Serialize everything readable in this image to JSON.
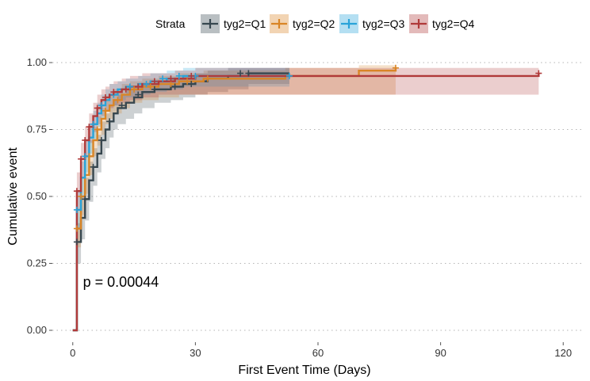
{
  "chart_data": {
    "type": "line",
    "title": "",
    "xlabel": "First Event Time  (Days)",
    "ylabel": "Cumulative event",
    "xlim": [
      -5,
      125
    ],
    "ylim": [
      0,
      1.0
    ],
    "x_ticks": [
      0,
      30,
      60,
      90,
      120
    ],
    "y_ticks": [
      "0.00",
      "0.25",
      "0.50",
      "0.75",
      "1.00"
    ],
    "y_tick_values": [
      0,
      0.25,
      0.5,
      0.75,
      1.0
    ],
    "grid": "horizontal dotted",
    "legend": {
      "title": "Strata",
      "position": "top"
    },
    "annotation": "p = 0.00044",
    "annotation_at": {
      "x": 2.5,
      "y": 0.18
    },
    "series": [
      {
        "name": "tyg2=Q1",
        "color": "#37474F",
        "steps": [
          [
            0,
            0
          ],
          [
            1,
            0.33
          ],
          [
            2,
            0.42
          ],
          [
            3,
            0.49
          ],
          [
            4,
            0.56
          ],
          [
            5,
            0.61
          ],
          [
            6,
            0.66
          ],
          [
            7,
            0.71
          ],
          [
            8,
            0.75
          ],
          [
            9,
            0.78
          ],
          [
            10,
            0.81
          ],
          [
            11,
            0.83
          ],
          [
            13,
            0.85
          ],
          [
            15,
            0.87
          ],
          [
            17,
            0.89
          ],
          [
            20,
            0.9
          ],
          [
            24,
            0.91
          ],
          [
            27,
            0.92
          ],
          [
            30,
            0.93
          ],
          [
            33,
            0.94
          ],
          [
            38,
            0.95
          ],
          [
            43,
            0.96
          ],
          [
            53,
            0.96
          ]
        ],
        "ci_upper": [
          [
            1,
            0.4
          ],
          [
            2,
            0.5
          ],
          [
            3,
            0.57
          ],
          [
            4,
            0.63
          ],
          [
            5,
            0.68
          ],
          [
            6,
            0.73
          ],
          [
            7,
            0.78
          ],
          [
            8,
            0.81
          ],
          [
            9,
            0.84
          ],
          [
            10,
            0.86
          ],
          [
            11,
            0.88
          ],
          [
            13,
            0.9
          ],
          [
            15,
            0.91
          ],
          [
            17,
            0.92
          ],
          [
            20,
            0.93
          ],
          [
            24,
            0.94
          ],
          [
            27,
            0.95
          ],
          [
            30,
            0.96
          ],
          [
            33,
            0.97
          ],
          [
            38,
            0.98
          ],
          [
            43,
            0.98
          ],
          [
            53,
            0.98
          ]
        ],
        "ci_lower": [
          [
            1,
            0.25
          ],
          [
            2,
            0.34
          ],
          [
            3,
            0.41
          ],
          [
            4,
            0.48
          ],
          [
            5,
            0.54
          ],
          [
            6,
            0.59
          ],
          [
            7,
            0.64
          ],
          [
            8,
            0.68
          ],
          [
            9,
            0.72
          ],
          [
            10,
            0.75
          ],
          [
            11,
            0.77
          ],
          [
            13,
            0.79
          ],
          [
            15,
            0.81
          ],
          [
            17,
            0.83
          ],
          [
            20,
            0.85
          ],
          [
            24,
            0.86
          ],
          [
            27,
            0.87
          ],
          [
            30,
            0.88
          ],
          [
            33,
            0.89
          ],
          [
            38,
            0.9
          ],
          [
            43,
            0.92
          ],
          [
            53,
            0.92
          ]
        ],
        "censor": [
          [
            1,
            0.33
          ],
          [
            3,
            0.49
          ],
          [
            5,
            0.61
          ],
          [
            7,
            0.71
          ],
          [
            9,
            0.78
          ],
          [
            12,
            0.84
          ],
          [
            16,
            0.88
          ],
          [
            20,
            0.9
          ],
          [
            25,
            0.91
          ],
          [
            29,
            0.92
          ],
          [
            41,
            0.96
          ],
          [
            43,
            0.96
          ]
        ]
      },
      {
        "name": "tyg2=Q2",
        "color": "#D98526",
        "steps": [
          [
            0,
            0
          ],
          [
            1,
            0.38
          ],
          [
            2,
            0.5
          ],
          [
            3,
            0.58
          ],
          [
            4,
            0.65
          ],
          [
            5,
            0.71
          ],
          [
            6,
            0.75
          ],
          [
            7,
            0.79
          ],
          [
            8,
            0.82
          ],
          [
            9,
            0.84
          ],
          [
            10,
            0.86
          ],
          [
            12,
            0.88
          ],
          [
            14,
            0.9
          ],
          [
            17,
            0.91
          ],
          [
            21,
            0.92
          ],
          [
            26,
            0.93
          ],
          [
            32,
            0.94
          ],
          [
            52,
            0.95
          ],
          [
            70,
            0.97
          ],
          [
            79,
            0.98
          ]
        ],
        "ci_upper": [
          [
            1,
            0.45
          ],
          [
            2,
            0.57
          ],
          [
            3,
            0.65
          ],
          [
            4,
            0.71
          ],
          [
            5,
            0.76
          ],
          [
            6,
            0.8
          ],
          [
            7,
            0.83
          ],
          [
            8,
            0.86
          ],
          [
            9,
            0.88
          ],
          [
            10,
            0.9
          ],
          [
            12,
            0.92
          ],
          [
            14,
            0.93
          ],
          [
            17,
            0.94
          ],
          [
            21,
            0.95
          ],
          [
            26,
            0.96
          ],
          [
            32,
            0.97
          ],
          [
            52,
            0.98
          ],
          [
            70,
            0.99
          ],
          [
            79,
            0.99
          ]
        ],
        "ci_lower": [
          [
            1,
            0.31
          ],
          [
            2,
            0.43
          ],
          [
            3,
            0.51
          ],
          [
            4,
            0.58
          ],
          [
            5,
            0.65
          ],
          [
            6,
            0.69
          ],
          [
            7,
            0.73
          ],
          [
            8,
            0.77
          ],
          [
            9,
            0.79
          ],
          [
            10,
            0.81
          ],
          [
            12,
            0.83
          ],
          [
            14,
            0.85
          ],
          [
            17,
            0.86
          ],
          [
            21,
            0.87
          ],
          [
            26,
            0.88
          ],
          [
            32,
            0.88
          ],
          [
            52,
            0.88
          ],
          [
            70,
            0.88
          ],
          [
            79,
            0.88
          ]
        ],
        "censor": [
          [
            1,
            0.38
          ],
          [
            2,
            0.5
          ],
          [
            4,
            0.65
          ],
          [
            6,
            0.75
          ],
          [
            8,
            0.82
          ],
          [
            11,
            0.86
          ],
          [
            15,
            0.9
          ],
          [
            19,
            0.91
          ],
          [
            24,
            0.92
          ],
          [
            28,
            0.93
          ],
          [
            33,
            0.94
          ],
          [
            79,
            0.98
          ]
        ]
      },
      {
        "name": "tyg2=Q3",
        "color": "#29A3D9",
        "steps": [
          [
            0,
            0
          ],
          [
            1,
            0.45
          ],
          [
            2,
            0.57
          ],
          [
            3,
            0.65
          ],
          [
            4,
            0.72
          ],
          [
            5,
            0.77
          ],
          [
            6,
            0.81
          ],
          [
            7,
            0.84
          ],
          [
            8,
            0.86
          ],
          [
            9,
            0.88
          ],
          [
            11,
            0.9
          ],
          [
            13,
            0.91
          ],
          [
            16,
            0.92
          ],
          [
            19,
            0.93
          ],
          [
            23,
            0.94
          ],
          [
            27,
            0.95
          ],
          [
            53,
            0.95
          ]
        ],
        "ci_upper": [
          [
            1,
            0.52
          ],
          [
            2,
            0.63
          ],
          [
            3,
            0.71
          ],
          [
            4,
            0.77
          ],
          [
            5,
            0.82
          ],
          [
            6,
            0.85
          ],
          [
            7,
            0.88
          ],
          [
            8,
            0.9
          ],
          [
            9,
            0.92
          ],
          [
            11,
            0.93
          ],
          [
            13,
            0.94
          ],
          [
            16,
            0.95
          ],
          [
            19,
            0.96
          ],
          [
            23,
            0.97
          ],
          [
            27,
            0.98
          ],
          [
            53,
            0.98
          ]
        ],
        "ci_lower": [
          [
            1,
            0.38
          ],
          [
            2,
            0.5
          ],
          [
            3,
            0.59
          ],
          [
            4,
            0.66
          ],
          [
            5,
            0.71
          ],
          [
            6,
            0.76
          ],
          [
            7,
            0.79
          ],
          [
            8,
            0.82
          ],
          [
            9,
            0.84
          ],
          [
            11,
            0.86
          ],
          [
            13,
            0.87
          ],
          [
            16,
            0.88
          ],
          [
            19,
            0.89
          ],
          [
            23,
            0.9
          ],
          [
            27,
            0.91
          ],
          [
            53,
            0.91
          ]
        ],
        "censor": [
          [
            1,
            0.45
          ],
          [
            3,
            0.65
          ],
          [
            5,
            0.77
          ],
          [
            7,
            0.84
          ],
          [
            10,
            0.88
          ],
          [
            14,
            0.91
          ],
          [
            18,
            0.92
          ],
          [
            22,
            0.94
          ],
          [
            26,
            0.95
          ],
          [
            30,
            0.95
          ],
          [
            53,
            0.95
          ]
        ]
      },
      {
        "name": "tyg2=Q4",
        "color": "#B03A3A",
        "steps": [
          [
            0,
            0
          ],
          [
            1,
            0.52
          ],
          [
            2,
            0.64
          ],
          [
            3,
            0.71
          ],
          [
            4,
            0.76
          ],
          [
            5,
            0.8
          ],
          [
            6,
            0.83
          ],
          [
            7,
            0.86
          ],
          [
            8,
            0.87
          ],
          [
            9,
            0.88
          ],
          [
            10,
            0.89
          ],
          [
            12,
            0.9
          ],
          [
            14,
            0.91
          ],
          [
            17,
            0.92
          ],
          [
            21,
            0.93
          ],
          [
            25,
            0.94
          ],
          [
            30,
            0.95
          ],
          [
            114,
            0.96
          ]
        ],
        "ci_upper": [
          [
            1,
            0.59
          ],
          [
            2,
            0.7
          ],
          [
            3,
            0.76
          ],
          [
            4,
            0.81
          ],
          [
            5,
            0.85
          ],
          [
            6,
            0.88
          ],
          [
            7,
            0.9
          ],
          [
            8,
            0.91
          ],
          [
            9,
            0.92
          ],
          [
            10,
            0.93
          ],
          [
            12,
            0.94
          ],
          [
            14,
            0.95
          ],
          [
            17,
            0.96
          ],
          [
            21,
            0.96
          ],
          [
            25,
            0.97
          ],
          [
            30,
            0.98
          ],
          [
            114,
            0.98
          ]
        ],
        "ci_lower": [
          [
            1,
            0.45
          ],
          [
            2,
            0.57
          ],
          [
            3,
            0.65
          ],
          [
            4,
            0.7
          ],
          [
            5,
            0.74
          ],
          [
            6,
            0.77
          ],
          [
            7,
            0.8
          ],
          [
            8,
            0.82
          ],
          [
            9,
            0.83
          ],
          [
            10,
            0.84
          ],
          [
            12,
            0.85
          ],
          [
            14,
            0.86
          ],
          [
            17,
            0.87
          ],
          [
            21,
            0.88
          ],
          [
            25,
            0.88
          ],
          [
            30,
            0.88
          ],
          [
            114,
            0.88
          ]
        ],
        "censor": [
          [
            1,
            0.52
          ],
          [
            2,
            0.64
          ],
          [
            3,
            0.71
          ],
          [
            4,
            0.76
          ],
          [
            6,
            0.83
          ],
          [
            8,
            0.87
          ],
          [
            10,
            0.89
          ],
          [
            13,
            0.9
          ],
          [
            16,
            0.91
          ],
          [
            20,
            0.93
          ],
          [
            24,
            0.94
          ],
          [
            29,
            0.95
          ],
          [
            114,
            0.96
          ]
        ]
      }
    ]
  }
}
